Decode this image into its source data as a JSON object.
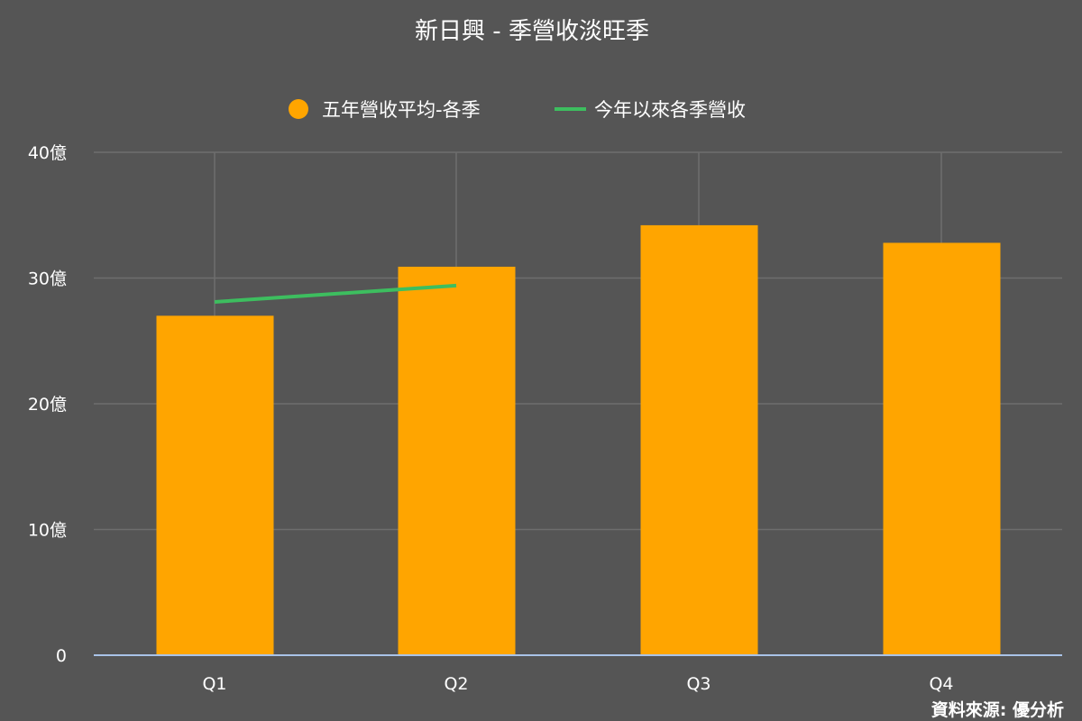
{
  "chart_data": {
    "type": "bar",
    "title": "新日興 - 季營收淡旺季",
    "categories": [
      "Q1",
      "Q2",
      "Q3",
      "Q4"
    ],
    "series": [
      {
        "name": "五年營收平均-各季",
        "type": "bar",
        "color": "#FFA500",
        "values": [
          27.0,
          30.9,
          34.2,
          32.8
        ]
      },
      {
        "name": "今年以來各季營收",
        "type": "line",
        "color": "#3DBE5F",
        "values": [
          28.1,
          29.4,
          null,
          null
        ]
      }
    ],
    "y_ticks": [
      "0",
      "10億",
      "20億",
      "30億",
      "40億"
    ],
    "ylim": [
      0,
      40
    ],
    "grid": true,
    "legend_position": "top",
    "source": "資料來源: 優分析"
  }
}
